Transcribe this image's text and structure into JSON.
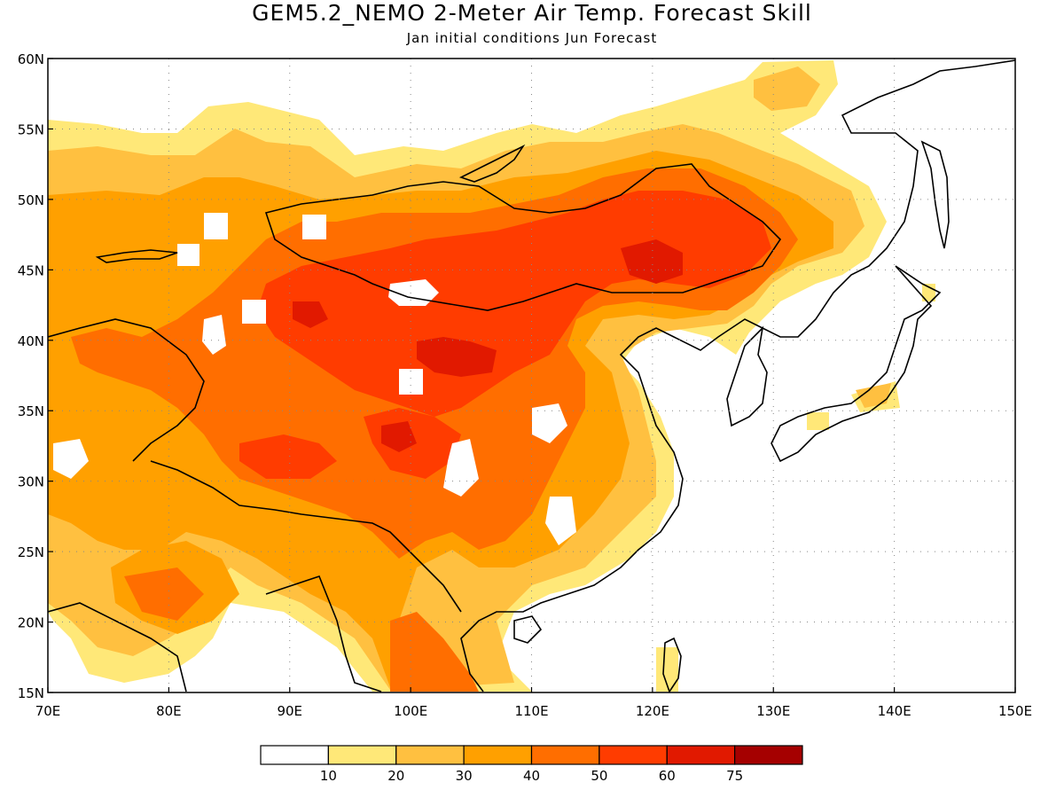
{
  "header": {
    "title": "GEM5.2_NEMO 2-Meter Air Temp. Forecast Skill",
    "subtitle": "Jan initial conditions  Jun Forecast"
  },
  "map": {
    "lon_range": [
      70,
      150
    ],
    "lat_range": [
      15,
      60
    ],
    "lon_ticks": [
      {
        "value": 70,
        "label": "70E"
      },
      {
        "value": 80,
        "label": "80E"
      },
      {
        "value": 90,
        "label": "90E"
      },
      {
        "value": 100,
        "label": "100E"
      },
      {
        "value": 110,
        "label": "110E"
      },
      {
        "value": 120,
        "label": "120E"
      },
      {
        "value": 130,
        "label": "130E"
      },
      {
        "value": 140,
        "label": "140E"
      },
      {
        "value": 150,
        "label": "150E"
      }
    ],
    "lat_ticks": [
      {
        "value": 15,
        "label": "15N"
      },
      {
        "value": 20,
        "label": "20N"
      },
      {
        "value": 25,
        "label": "25N"
      },
      {
        "value": 30,
        "label": "30N"
      },
      {
        "value": 35,
        "label": "35N"
      },
      {
        "value": 40,
        "label": "40N"
      },
      {
        "value": 45,
        "label": "45N"
      },
      {
        "value": 50,
        "label": "50N"
      },
      {
        "value": 55,
        "label": "55N"
      },
      {
        "value": 60,
        "label": "60N"
      }
    ],
    "gridlines": true
  },
  "legend": {
    "boundaries": [
      "10",
      "20",
      "30",
      "40",
      "50",
      "60",
      "75"
    ],
    "colors": [
      "#ffffff",
      "#ffe878",
      "#ffc040",
      "#ffa000",
      "#ff6e00",
      "#ff3c00",
      "#e11900",
      "#a50000"
    ]
  }
}
